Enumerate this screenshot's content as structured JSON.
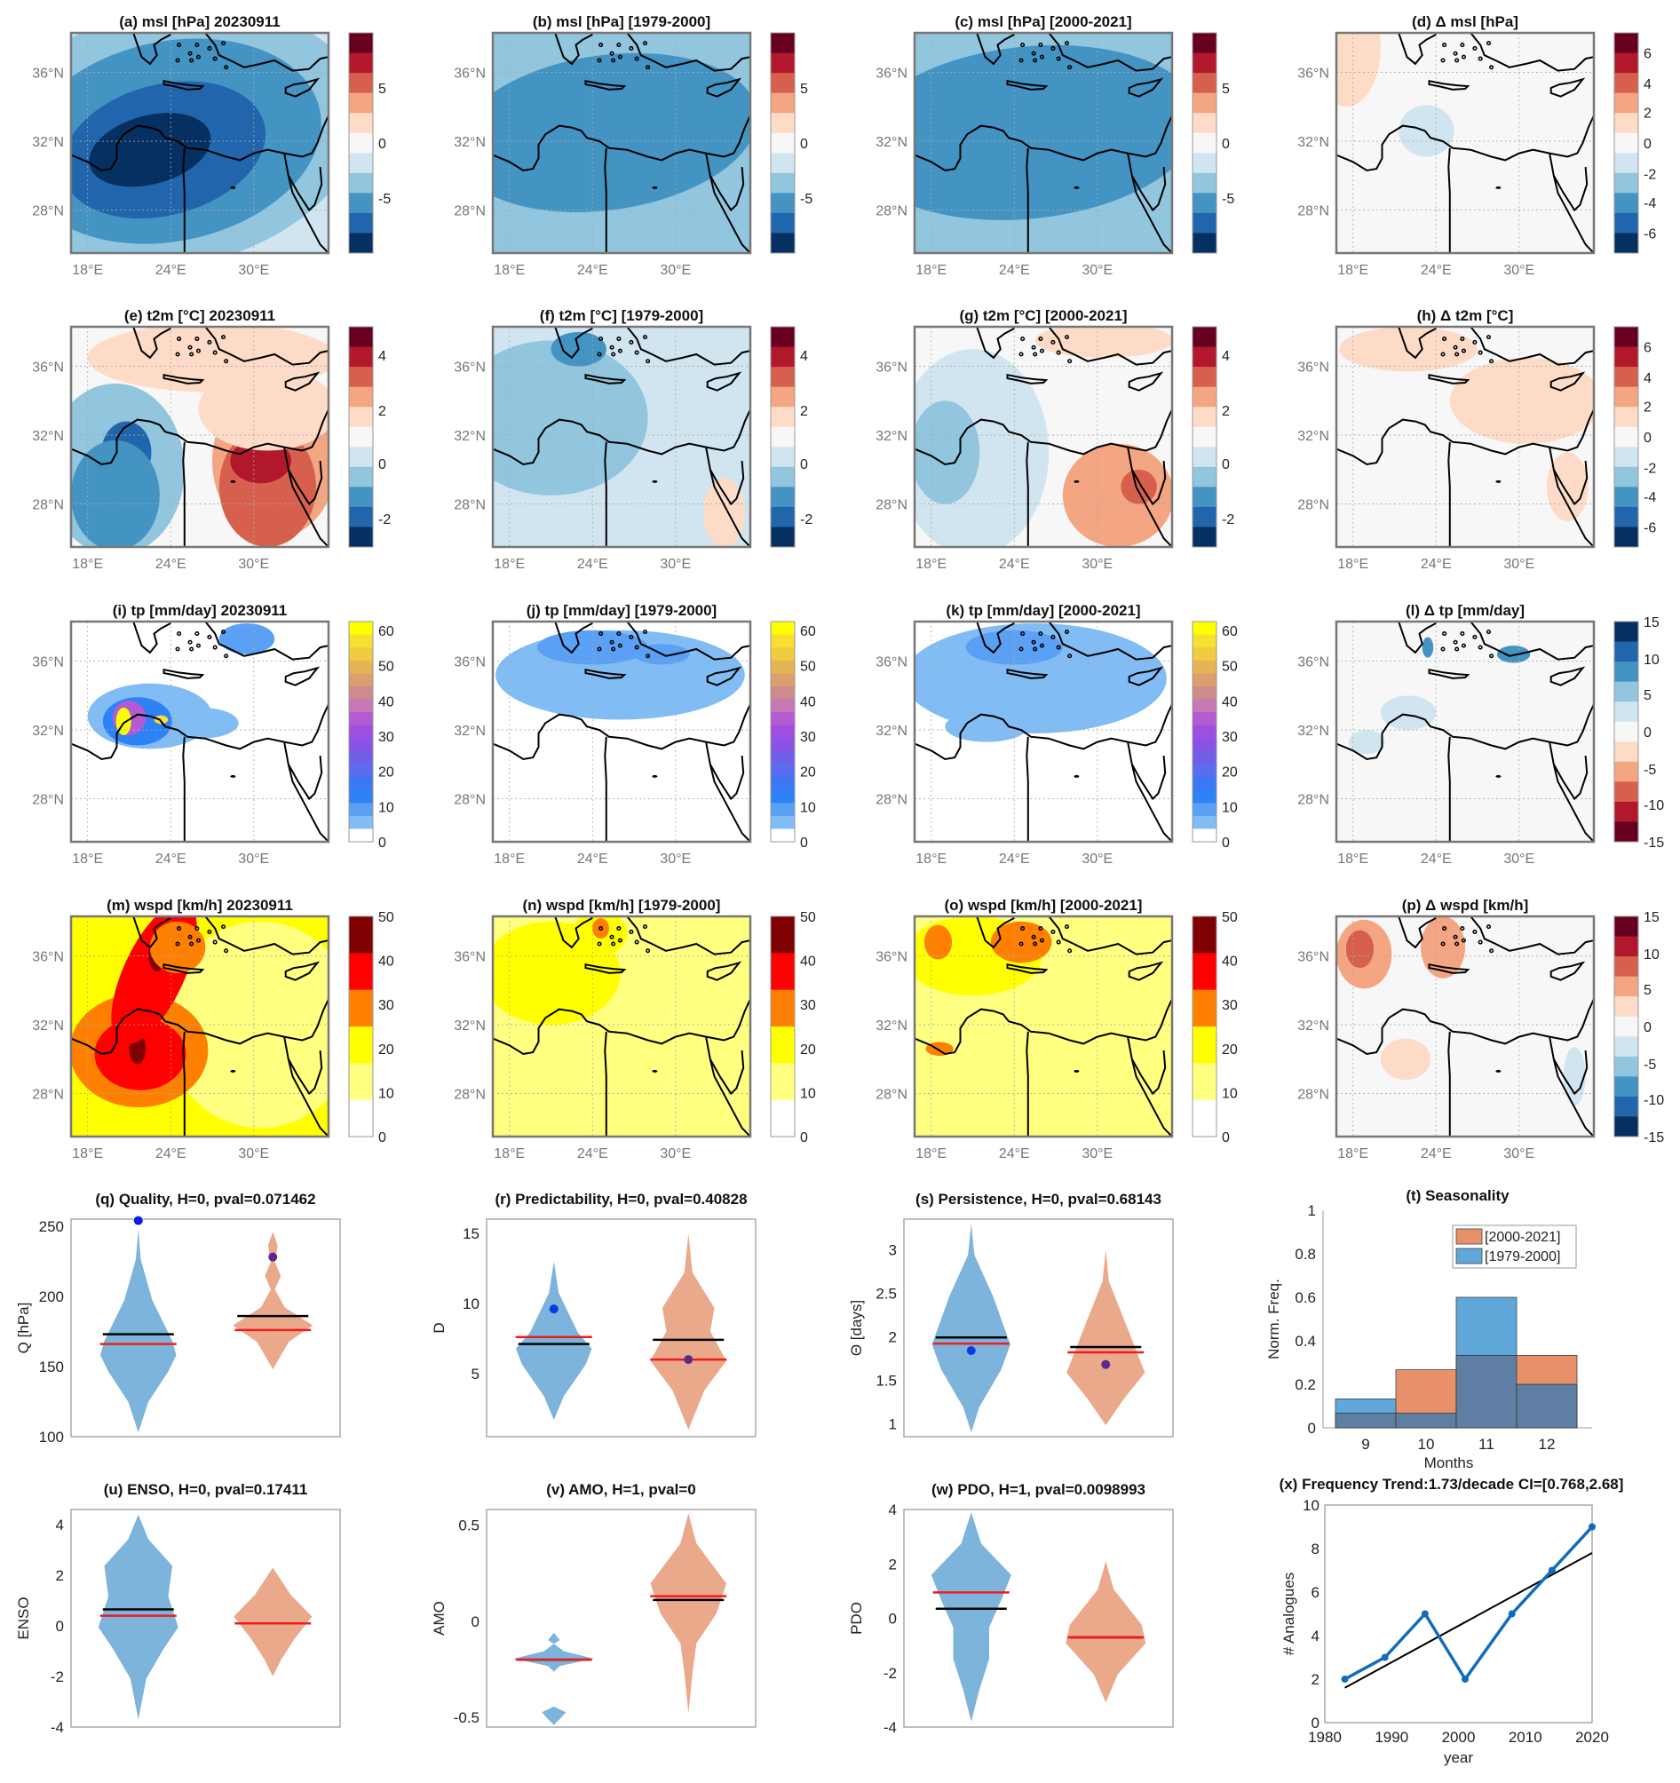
{
  "figure": {
    "map_axes": {
      "lon_ticks": [
        "18°E",
        "24°E",
        "30°E"
      ],
      "lat_ticks": [
        "36°N",
        "32°N",
        "28°N"
      ]
    },
    "colormaps": {
      "rdbu": [
        "#67001f",
        "#b2182b",
        "#d6604d",
        "#f4a582",
        "#fddbc7",
        "#f7f7f7",
        "#d1e5f0",
        "#92c5de",
        "#4393c3",
        "#2166ac",
        "#053061"
      ],
      "rdbu_rev": [
        "#053061",
        "#2166ac",
        "#4393c3",
        "#92c5de",
        "#d1e5f0",
        "#f7f7f7",
        "#fddbc7",
        "#f4a582",
        "#d6604d",
        "#b2182b",
        "#67001f"
      ],
      "tp": [
        "#ffff00",
        "#f7e030",
        "#efcc40",
        "#e5b455",
        "#dca070",
        "#cc8c8c",
        "#c878b4",
        "#b45ad2",
        "#9d4fe0",
        "#8a52e6",
        "#7060e8",
        "#5a6cf0",
        "#3c78f4",
        "#2d82f5",
        "#5aa0f5",
        "#82bcf5",
        "#ffffff"
      ],
      "wspd": [
        "#7f0000",
        "#ff0000",
        "#ff8000",
        "#ffff00",
        "#ffff80",
        "#ffffff"
      ]
    },
    "map_panels": [
      {
        "id": "a",
        "title": "(a) msl [hPa] 20230911",
        "cmap": "rdbu",
        "cticks": [
          "5",
          "0",
          "-5"
        ],
        "cticks_pos": [
          0.25,
          0.5,
          0.75
        ]
      },
      {
        "id": "b",
        "title": "(b) msl [hPa] [1979-2000]",
        "cmap": "rdbu",
        "cticks": [
          "5",
          "0",
          "-5"
        ],
        "cticks_pos": [
          0.25,
          0.5,
          0.75
        ]
      },
      {
        "id": "c",
        "title": "(c) msl [hPa] [2000-2021]",
        "cmap": "rdbu",
        "cticks": [
          "5",
          "0",
          "-5"
        ],
        "cticks_pos": [
          0.25,
          0.5,
          0.75
        ]
      },
      {
        "id": "d",
        "title": "(d) Δ msl [hPa]",
        "cmap": "rdbu",
        "cticks": [
          "6",
          "4",
          "2",
          "0",
          "-2",
          "-4",
          "-6"
        ],
        "cticks_pos": [
          0.09,
          0.23,
          0.36,
          0.5,
          0.64,
          0.77,
          0.91
        ]
      },
      {
        "id": "e",
        "title": "(e) t2m [°C] 20230911",
        "cmap": "rdbu",
        "cticks": [
          "4",
          "2",
          "0",
          "-2"
        ],
        "cticks_pos": [
          0.13,
          0.38,
          0.62,
          0.87
        ]
      },
      {
        "id": "f",
        "title": "(f) t2m [°C] [1979-2000]",
        "cmap": "rdbu",
        "cticks": [
          "4",
          "2",
          "0",
          "-2"
        ],
        "cticks_pos": [
          0.13,
          0.38,
          0.62,
          0.87
        ]
      },
      {
        "id": "g",
        "title": "(g) t2m [°C] [2000-2021]",
        "cmap": "rdbu",
        "cticks": [
          "4",
          "2",
          "0",
          "-2"
        ],
        "cticks_pos": [
          0.13,
          0.38,
          0.62,
          0.87
        ]
      },
      {
        "id": "h",
        "title": "(h) Δ t2m [°C]",
        "cmap": "rdbu",
        "cticks": [
          "6",
          "4",
          "2",
          "0",
          "-2",
          "-4",
          "-6"
        ],
        "cticks_pos": [
          0.09,
          0.23,
          0.36,
          0.5,
          0.64,
          0.77,
          0.91
        ]
      },
      {
        "id": "i",
        "title": "(i) tp [mm/day] 20230911",
        "cmap": "tp",
        "cticks": [
          "60",
          "50",
          "40",
          "30",
          "20",
          "10",
          "0"
        ],
        "cticks_pos": [
          0.04,
          0.2,
          0.36,
          0.52,
          0.68,
          0.84,
          1.0
        ]
      },
      {
        "id": "j",
        "title": "(j) tp [mm/day] [1979-2000]",
        "cmap": "tp",
        "cticks": [
          "60",
          "50",
          "40",
          "30",
          "20",
          "10",
          "0"
        ],
        "cticks_pos": [
          0.04,
          0.2,
          0.36,
          0.52,
          0.68,
          0.84,
          1.0
        ]
      },
      {
        "id": "k",
        "title": "(k) tp [mm/day] [2000-2021]",
        "cmap": "tp",
        "cticks": [
          "60",
          "50",
          "40",
          "30",
          "20",
          "10",
          "0"
        ],
        "cticks_pos": [
          0.04,
          0.2,
          0.36,
          0.52,
          0.68,
          0.84,
          1.0
        ]
      },
      {
        "id": "l",
        "title": "(l) Δ tp [mm/day]",
        "cmap": "rdbu_rev",
        "cticks": [
          "15",
          "10",
          "5",
          "0",
          "-5",
          "-10",
          "-15"
        ],
        "cticks_pos": [
          0.0,
          0.17,
          0.33,
          0.5,
          0.67,
          0.83,
          1.0
        ]
      },
      {
        "id": "m",
        "title": "(m) wspd [km/h] 20230911",
        "cmap": "wspd",
        "cticks": [
          "50",
          "40",
          "30",
          "20",
          "10",
          "0"
        ],
        "cticks_pos": [
          0.0,
          0.2,
          0.4,
          0.6,
          0.8,
          1.0
        ]
      },
      {
        "id": "n",
        "title": "(n) wspd [km/h] [1979-2000]",
        "cmap": "wspd",
        "cticks": [
          "50",
          "40",
          "30",
          "20",
          "10",
          "0"
        ],
        "cticks_pos": [
          0.0,
          0.2,
          0.4,
          0.6,
          0.8,
          1.0
        ]
      },
      {
        "id": "o",
        "title": "(o) wspd [km/h] [2000-2021]",
        "cmap": "wspd",
        "cticks": [
          "50",
          "40",
          "30",
          "20",
          "10",
          "0"
        ],
        "cticks_pos": [
          0.0,
          0.2,
          0.4,
          0.6,
          0.8,
          1.0
        ]
      },
      {
        "id": "p",
        "title": "(p) Δ wspd [km/h]",
        "cmap": "rdbu",
        "cticks": [
          "15",
          "10",
          "5",
          "0",
          "-5",
          "-10",
          "-15"
        ],
        "cticks_pos": [
          0.0,
          0.17,
          0.33,
          0.5,
          0.67,
          0.83,
          1.0
        ]
      }
    ]
  },
  "chart_data": [
    {
      "id": "q",
      "type": "violin",
      "title": "(q)  Quality, H=0, pval=0.071462",
      "ylabel": "Q [hPa]",
      "ylim": [
        100,
        255
      ],
      "yticks": [
        100,
        150,
        200,
        250
      ],
      "series": [
        {
          "name": "[1979-2000]",
          "color": "#7db4dc",
          "range": [
            103,
            248
          ],
          "mean": 173,
          "median": 166,
          "event_point": 254,
          "point_color": "#0a1ee6"
        },
        {
          "name": "[2000-2021]",
          "color": "#eba98c",
          "range": [
            148,
            246
          ],
          "mean": 186,
          "median": 176,
          "event_point": 228,
          "point_color": "#5b2a8c"
        }
      ]
    },
    {
      "id": "r",
      "type": "violin",
      "title": "(r)  Predictability, H=0, pval=0.40828",
      "ylabel": "D",
      "ylim": [
        0.5,
        16
      ],
      "yticks": [
        5,
        10,
        15
      ],
      "series": [
        {
          "name": "[1979-2000]",
          "color": "#7db4dc",
          "range": [
            1.7,
            13
          ],
          "mean": 7.1,
          "median": 7.6,
          "event_point": 9.6,
          "point_color": "#0a3ce6"
        },
        {
          "name": "[2000-2021]",
          "color": "#eba98c",
          "range": [
            1,
            15
          ],
          "mean": 7.4,
          "median": 6.0,
          "event_point": 6.0,
          "point_color": "#5b2a8c"
        }
      ]
    },
    {
      "id": "s",
      "type": "violin",
      "title": "(s)  Persistence, H=0, pval=0.68143",
      "ylabel": "Θ [days]",
      "ylim": [
        0.85,
        3.35
      ],
      "yticks": [
        1,
        1.5,
        2,
        2.5,
        3
      ],
      "series": [
        {
          "name": "[1979-2000]",
          "color": "#7db4dc",
          "range": [
            0.9,
            3.3
          ],
          "mean": 1.99,
          "median": 1.92,
          "event_point": 1.84,
          "point_color": "#0a3ce6"
        },
        {
          "name": "[2000-2021]",
          "color": "#eba98c",
          "range": [
            0.98,
            3.0
          ],
          "mean": 1.88,
          "median": 1.82,
          "event_point": 1.68,
          "point_color": "#5b2a8c"
        }
      ]
    },
    {
      "id": "t",
      "type": "bar",
      "title": "(t) Seasonality",
      "xlabel": "Months",
      "ylabel": "Norm. Freq.",
      "ylim": [
        0,
        1
      ],
      "yticks": [
        0,
        0.2,
        0.4,
        0.6,
        0.8,
        1
      ],
      "categories": [
        "9",
        "10",
        "11",
        "12"
      ],
      "series": [
        {
          "name": "[2000-2021]",
          "color": "#e8906a",
          "values": [
            0.067,
            0.267,
            0.333,
            0.333
          ]
        },
        {
          "name": "[1979-2000]",
          "color": "#5fa8d9",
          "values": [
            0.133,
            0.067,
            0.6,
            0.2
          ]
        }
      ],
      "overlap_color": "#5e7fa3",
      "legend": "top-right"
    },
    {
      "id": "u",
      "type": "violin",
      "title": "(u)  ENSO, H=0, pval=0.17411",
      "ylabel": "ENSO",
      "ylim": [
        -4,
        4.6
      ],
      "yticks": [
        -4,
        -2,
        0,
        2,
        4
      ],
      "series": [
        {
          "name": "[1979-2000]",
          "color": "#7db4dc",
          "range": [
            -3.7,
            4.4
          ],
          "mean": 0.65,
          "median": 0.4
        },
        {
          "name": "[2000-2021]",
          "color": "#eba98c",
          "range": [
            -2.0,
            2.3
          ],
          "mean": 0.1,
          "median": 0.1
        }
      ]
    },
    {
      "id": "v",
      "type": "violin",
      "title": "(v)  AMO, H=1, pval=0",
      "ylabel": "AMO",
      "ylim": [
        -0.55,
        0.58
      ],
      "yticks": [
        -0.5,
        0,
        0.5
      ],
      "series": [
        {
          "name": "[1979-2000]",
          "color": "#7db4dc",
          "range": [
            -0.54,
            -0.06
          ],
          "mean": -0.2,
          "median": -0.2
        },
        {
          "name": "[2000-2021]",
          "color": "#eba98c",
          "range": [
            -0.48,
            0.56
          ],
          "mean": 0.11,
          "median": 0.13
        }
      ]
    },
    {
      "id": "w",
      "type": "violin",
      "title": "(w)  PDO, H=1, pval=0.0098993",
      "ylabel": "PDO",
      "ylim": [
        -4,
        4
      ],
      "yticks": [
        -4,
        -2,
        0,
        2,
        4
      ],
      "series": [
        {
          "name": "[1979-2000]",
          "color": "#7db4dc",
          "range": [
            -3.8,
            3.9
          ],
          "mean": 0.35,
          "median": 0.95
        },
        {
          "name": "[2000-2021]",
          "color": "#eba98c",
          "range": [
            -3.1,
            2.1
          ],
          "mean": -0.7,
          "median": -0.7
        }
      ]
    },
    {
      "id": "x",
      "type": "line",
      "title": "(x) Frequency Trend:1.73/decade CI=[0.768,2.68]",
      "xlabel": "year",
      "ylabel": "# Analogues",
      "xlim": [
        1980,
        2020
      ],
      "ylim": [
        0,
        10
      ],
      "xticks": [
        1980,
        1990,
        2000,
        2010,
        2020
      ],
      "yticks": [
        0,
        2,
        4,
        6,
        8,
        10
      ],
      "x": [
        1983,
        1989,
        1995,
        2001,
        2008,
        2014,
        2020
      ],
      "y": [
        2,
        3,
        5,
        2,
        5,
        7,
        9
      ],
      "trend": {
        "x": [
          1983,
          2020
        ],
        "y": [
          1.6,
          7.8
        ]
      },
      "line_color": "#0f6cbd"
    }
  ]
}
